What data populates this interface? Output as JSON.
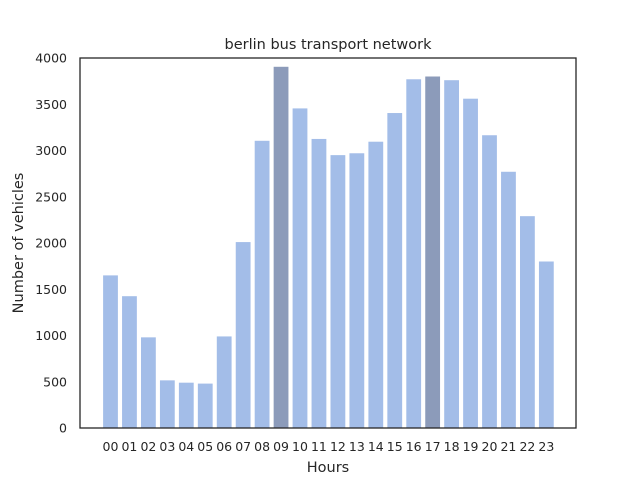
{
  "chart_data": {
    "type": "bar",
    "title": "berlin bus transport network",
    "xlabel": "Hours",
    "ylabel": "Number of vehicles",
    "categories": [
      "00",
      "01",
      "02",
      "03",
      "04",
      "05",
      "06",
      "07",
      "08",
      "09",
      "10",
      "11",
      "12",
      "13",
      "14",
      "15",
      "16",
      "17",
      "18",
      "19",
      "20",
      "21",
      "22",
      "23"
    ],
    "values": [
      1650,
      1425,
      980,
      515,
      490,
      480,
      990,
      2010,
      3105,
      3905,
      3455,
      3125,
      2950,
      2970,
      3095,
      3405,
      3770,
      3800,
      3760,
      3560,
      3165,
      2770,
      2290,
      1800
    ],
    "highlighted": [
      "09",
      "17"
    ],
    "ylim": [
      0,
      4000
    ],
    "yticks": [
      0,
      500,
      1000,
      1500,
      2000,
      2500,
      3000,
      3500,
      4000
    ],
    "grid": false,
    "colors": {
      "bar": "#a3bde8",
      "bar_highlight": "#8c9bba",
      "axis": "#262626",
      "background": "#ffffff"
    }
  }
}
